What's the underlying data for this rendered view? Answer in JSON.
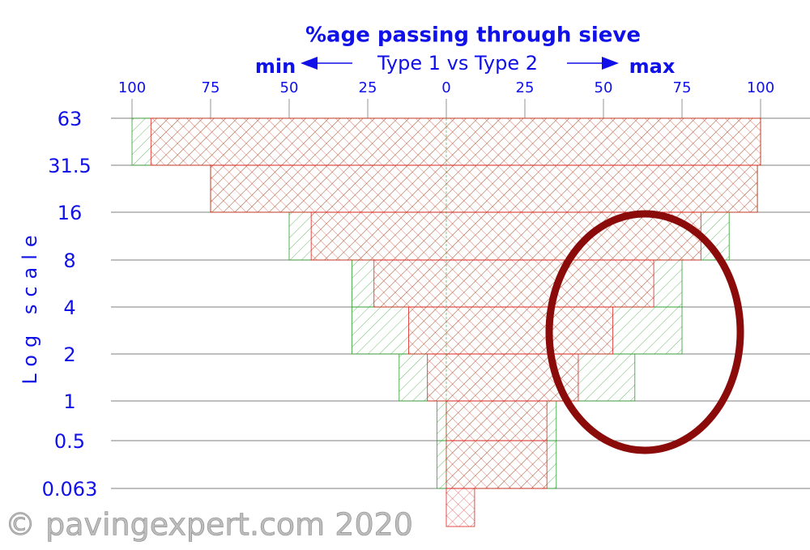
{
  "chart_data": {
    "type": "grading-envelope",
    "title": "%age passing through sieve",
    "subtitle": "Type 1 vs Type 2",
    "min_label": "min",
    "max_label": "max",
    "y_label": "Log scale",
    "watermark": "© pavingexpert.com 2020",
    "categories": [
      "63",
      "31.5",
      "16",
      "8",
      "4",
      "2",
      "1",
      "0.5",
      "0.063"
    ],
    "series": [
      {
        "name": "Type 1",
        "color": "#2e9e2e",
        "min": [
          100,
          75,
          50,
          30,
          30,
          15,
          3,
          3,
          null
        ],
        "max": [
          100,
          99,
          90,
          75,
          75,
          60,
          35,
          35,
          null
        ]
      },
      {
        "name": "Type 2",
        "color": "#e0201c",
        "min": [
          94,
          75,
          43,
          23,
          12,
          6,
          0,
          0,
          0
        ],
        "max": [
          100,
          99,
          81,
          66,
          53,
          42,
          32,
          32,
          9
        ]
      }
    ],
    "xlim": [
      0,
      100
    ],
    "xticks_min": [
      100,
      75,
      50,
      25
    ],
    "xticks_max": [
      0,
      25,
      50,
      75,
      100
    ]
  }
}
